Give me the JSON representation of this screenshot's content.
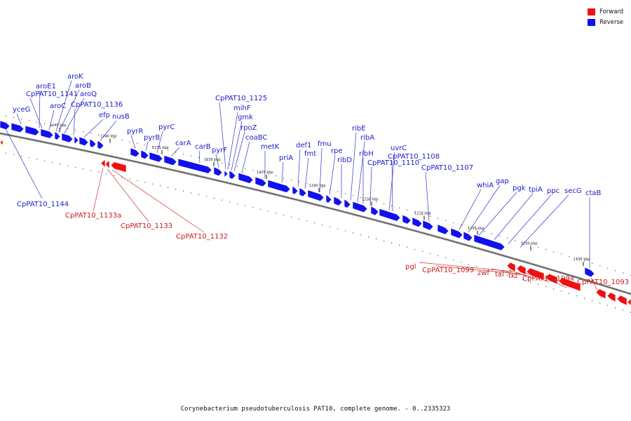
{
  "legend": [
    {
      "label": "Forward",
      "color": "#ee1111"
    },
    {
      "label": "Reverse",
      "color": "#1111ee"
    }
  ],
  "caption": "Corynebacterium pseudotuberculosis PAT10, complete genome. - 0..2335323",
  "colors": {
    "forward": "#ee1111",
    "reverse": "#1111ee",
    "backbone": "#888888"
  },
  "ticks": [
    "1245 kbp",
    "1240 kbp",
    "1235 kbp",
    "1230 kbp",
    "1225 kbp",
    "1220 kbp",
    "1215 kbp",
    "1210 kbp",
    "1205 kbp",
    "1200 kbp",
    "1195 kbp"
  ],
  "reverse_genes": [
    "yceG",
    "aroE1",
    "CpPAT10_1141",
    "aroC",
    "aroK",
    "aroB",
    "aroQ",
    "CpPAT10_1136",
    "efp",
    "nusB",
    "pyrR",
    "pyrB",
    "pyrC",
    "carA",
    "carB",
    "pyrF",
    "CpPAT10_1125",
    "mihF",
    "gmk",
    "rpoZ",
    "coaBC",
    "metK",
    "priA",
    "def1",
    "fmt",
    "fmu",
    "rpe",
    "ribD",
    "ribE",
    "ribA",
    "ribH",
    "CpPAT10_1110",
    "uvrC",
    "CpPAT10_1108",
    "CpPAT10_1107",
    "whiA",
    "gap",
    "pgk",
    "tpiA",
    "ppc",
    "secG",
    "ctaB",
    "CpPAT10_1144"
  ],
  "forward_genes": [
    "CpPAT10_1133a",
    "CpPAT10_1133",
    "CpPAT10_1132",
    "pgl",
    "CpPAT10_1099",
    "zwf",
    "tal",
    "tkt",
    "CpPAT10_1094",
    "CpPAT10_1093"
  ]
}
